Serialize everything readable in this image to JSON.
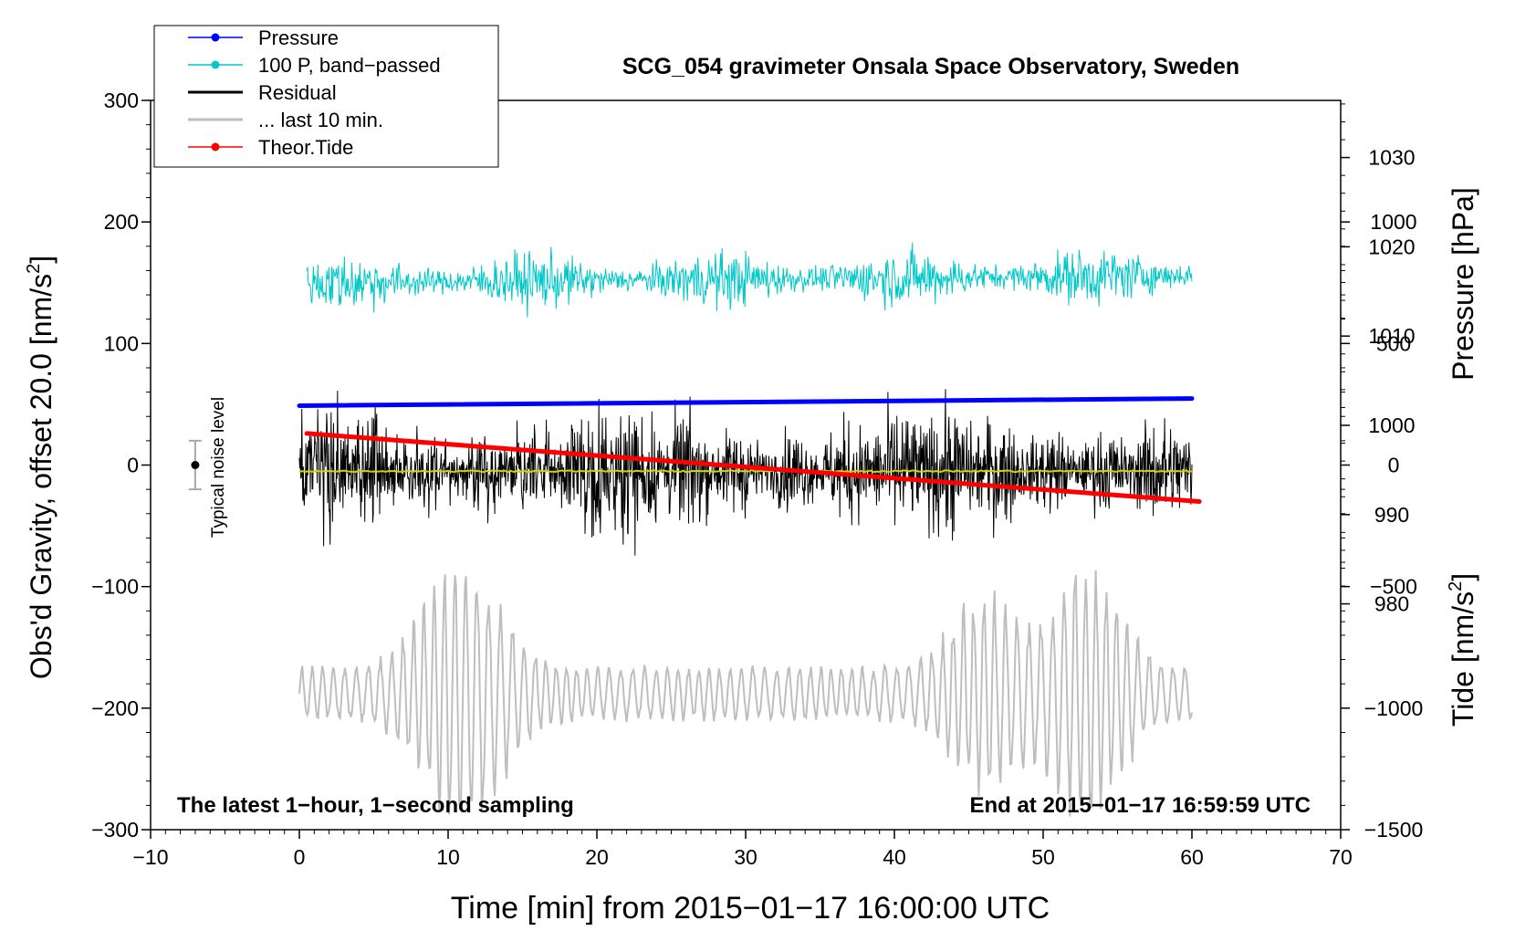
{
  "chart_data": {
    "type": "line",
    "title": "SCG_054 gravimeter Onsala Space Observatory, Sweden",
    "xlabel": "Time [min] from 2015−01−17 16:00:00 UTC",
    "ylabel_left_main": "Obs'd Gravity, offset 20.0 [nm/s",
    "ylabel_left_sup": "2",
    "ylabel_left_end": "]",
    "ylabel_pressure": "Pressure [hPa]",
    "ylabel_tide_main": "Tide [nm/s",
    "ylabel_tide_sup": "2",
    "ylabel_tide_end": "]",
    "xlim": [
      -10,
      70
    ],
    "ylim": [
      -300,
      300
    ],
    "x_ticks": [
      "−10",
      "0",
      "10",
      "20",
      "30",
      "40",
      "50",
      "60",
      "70"
    ],
    "x_tick_values": [
      -10,
      0,
      10,
      20,
      30,
      40,
      50,
      60,
      70
    ],
    "y_ticks": [
      "300",
      "200",
      "100",
      "0",
      "−100",
      "−200",
      "−300"
    ],
    "y_tick_values": [
      300,
      200,
      100,
      0,
      -100,
      -200,
      -300
    ],
    "pressure_axis": {
      "range": [
        954.7,
        1036.4
      ],
      "ticks": [
        "1030",
        "1020",
        "1010",
        "1000",
        "990",
        "980"
      ],
      "tick_values": [
        1030,
        1020,
        1010,
        1000,
        990,
        980
      ]
    },
    "tide_axis": {
      "range": [
        -1500,
        1500
      ],
      "ticks": [
        "1000",
        "500",
        "0",
        "−500",
        "−1000",
        "−1500"
      ],
      "tick_values": [
        1000,
        500,
        0,
        -500,
        -1000,
        -1500
      ]
    },
    "legend": [
      {
        "label": "Pressure",
        "color": "#0000ff",
        "marker": true
      },
      {
        "label": "100 P, band−passed",
        "color": "#00c8c8",
        "marker": true
      },
      {
        "label": "Residual",
        "color": "#000000",
        "marker": false
      },
      {
        "label": "... last 10 min.",
        "color": "#bebebe",
        "marker": false
      },
      {
        "label": "Theor.Tide",
        "color": "#ff0000",
        "marker": true
      }
    ],
    "series": [
      {
        "name": "Pressure",
        "axis": "pressure",
        "color": "#0000ff",
        "x": [
          0,
          60
        ],
        "values": [
          1002.2,
          1003.0
        ]
      },
      {
        "name": "100 P, band−passed",
        "axis": "gravity",
        "color": "#00c8c8",
        "x_range": [
          0.5,
          60
        ],
        "center": 150,
        "amplitude": 40
      },
      {
        "name": "Residual",
        "axis": "gravity",
        "color": "#000000",
        "x_range": [
          0,
          60
        ],
        "center": -5,
        "amplitude": 75
      },
      {
        "name": "Residual mean",
        "axis": "gravity",
        "color": "#d2d200",
        "x": [
          0,
          60
        ],
        "values": [
          -5,
          -5
        ]
      },
      {
        "name": "... last 10 min.",
        "axis": "gravity",
        "color": "#bebebe",
        "x_range": [
          0,
          60
        ],
        "center": -188,
        "amplitude": 90
      },
      {
        "name": "Theor.Tide",
        "axis": "tide",
        "color": "#ff0000",
        "x": [
          0.5,
          60.5
        ],
        "values": [
          130,
          -150
        ]
      }
    ],
    "noise_bar": {
      "label": "Typical noise level",
      "x": -7,
      "center": 0,
      "low": -20,
      "high": 20
    },
    "annotations": {
      "bottom_left": "The latest 1−hour, 1−second sampling",
      "bottom_right": "End at 2015−01−17 16:59:59 UTC"
    }
  }
}
